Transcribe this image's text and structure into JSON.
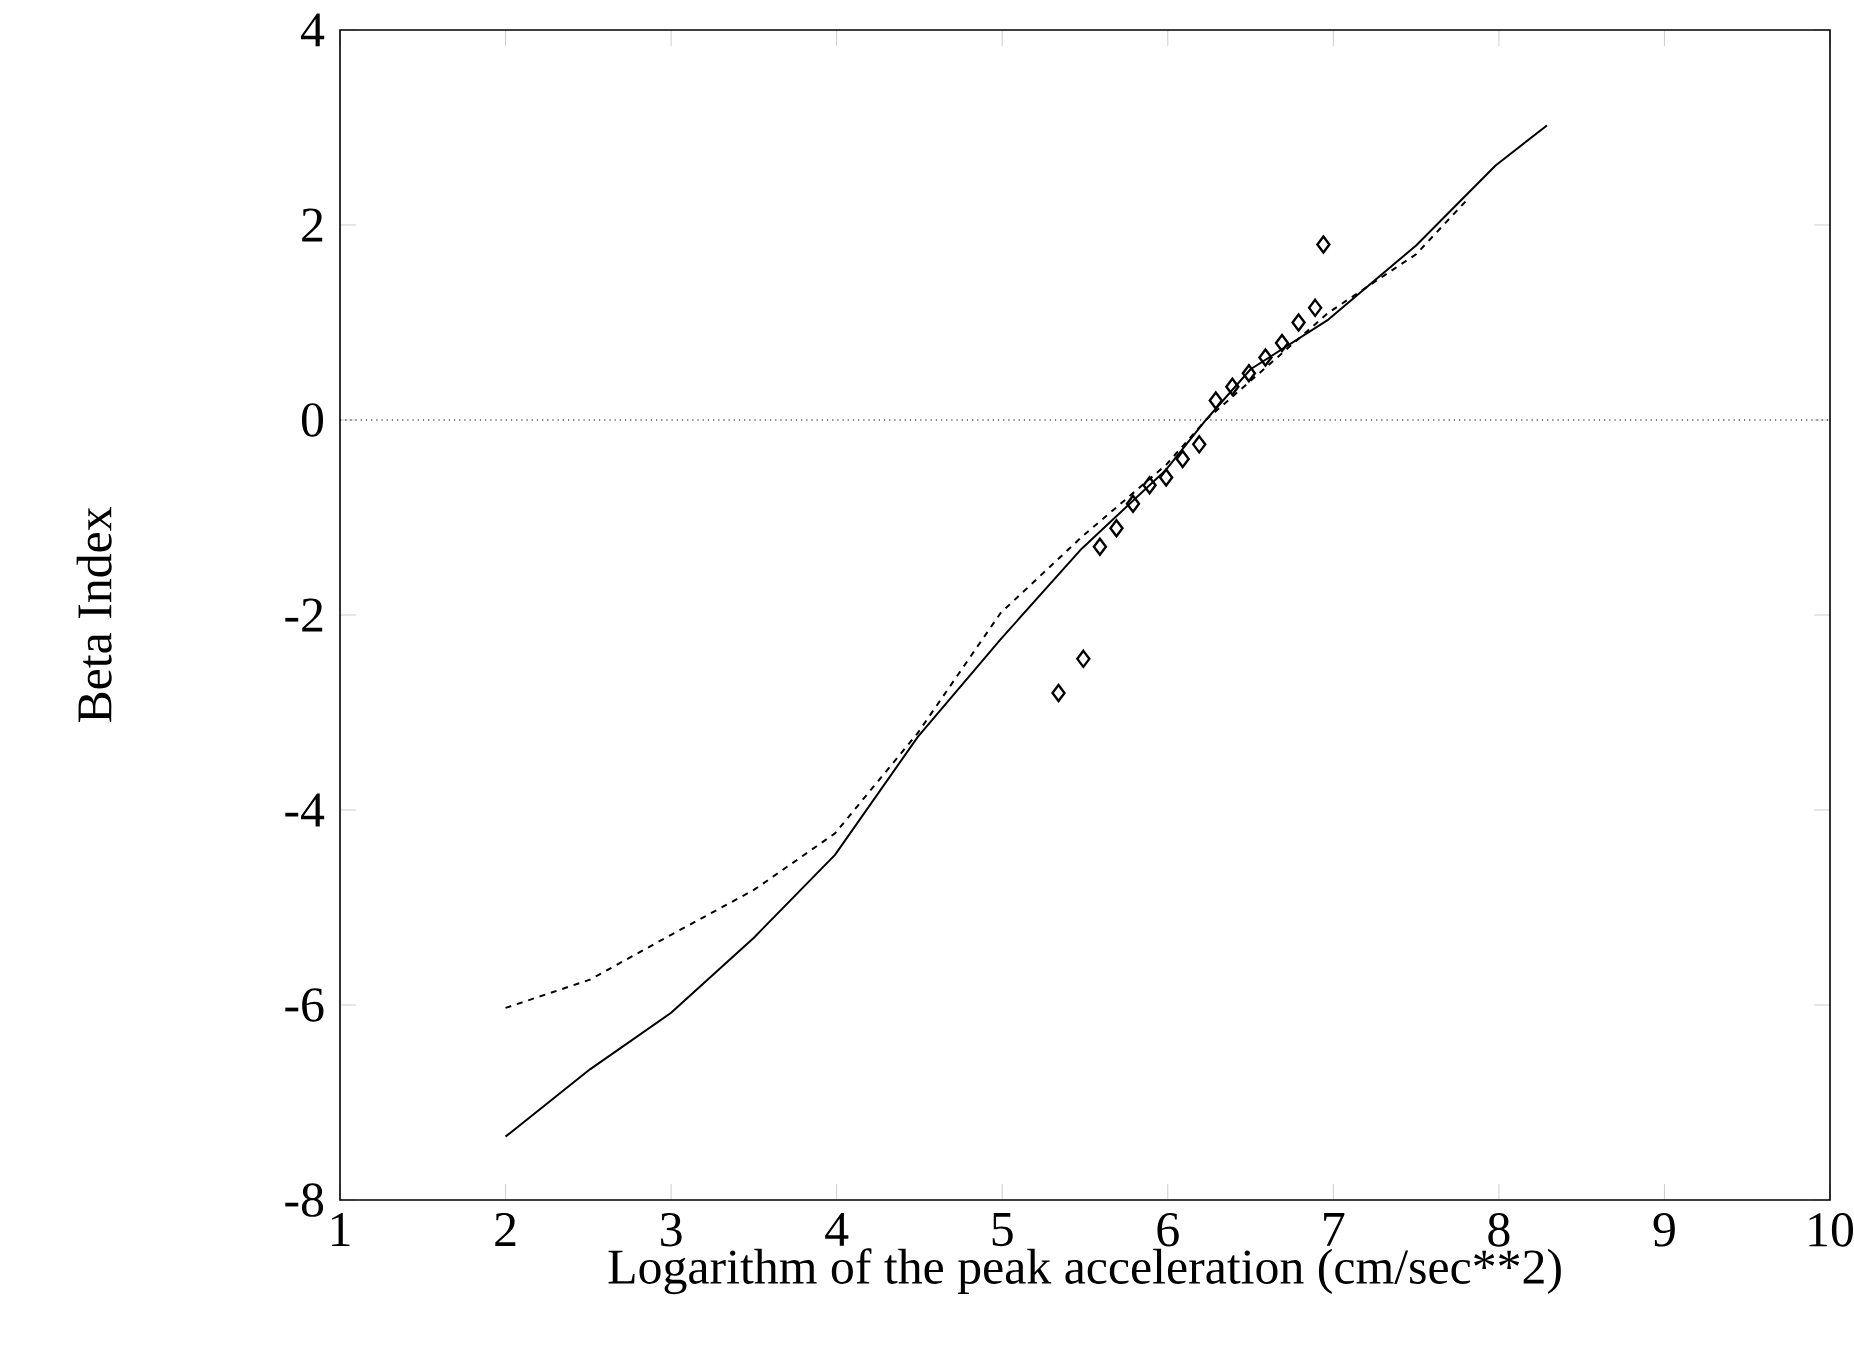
{
  "chart_data": {
    "type": "scatter",
    "xlabel": "Logarithm of the peak acceleration (cm/sec**2)",
    "ylabel": "Beta Index",
    "xlim": [
      1,
      10
    ],
    "xticks": [
      1,
      2,
      3,
      4,
      5,
      6,
      7,
      8,
      9,
      10
    ],
    "ylim": [
      -8,
      4
    ],
    "yticks": [
      -8,
      -6,
      -4,
      -2,
      0,
      2,
      4
    ],
    "ref_lines": [
      {
        "axis": "y",
        "value": 0,
        "line_style": "dotted",
        "color": "#000000"
      }
    ],
    "series": [
      {
        "type": "line",
        "color": "#000000",
        "line_style": "solid",
        "marker": "none",
        "x": [
          2,
          2.51,
          3.0,
          3.5,
          3.99,
          4.49,
          4.99,
          5.48,
          5.99,
          6.23,
          6.5,
          6.97,
          7.5,
          7.98,
          8.29
        ],
        "values": [
          -7.35,
          -6.66,
          -6.08,
          -5.31,
          -4.46,
          -3.25,
          -2.25,
          -1.32,
          -0.51,
          0,
          0.52,
          1.03,
          1.79,
          2.61,
          3.02
        ]
      },
      {
        "type": "line",
        "color": "#000000",
        "line_style": "dashed",
        "marker": "none",
        "x": [
          2,
          2.51,
          3.0,
          3.5,
          3.99,
          4.49,
          4.99,
          5.48,
          5.99,
          6.23,
          6.97,
          7.5,
          7.82
        ],
        "values": [
          -6.03,
          -5.74,
          -5.28,
          -4.82,
          -4.24,
          -3.21,
          -1.98,
          -1.2,
          -0.46,
          0,
          1.1,
          1.7,
          2.28
        ]
      },
      {
        "type": "scatter",
        "color": "#000000",
        "marker": "diamond",
        "x": [
          5.34,
          5.49,
          5.59,
          5.69,
          5.79,
          5.89,
          5.99,
          6.09,
          6.19,
          6.29,
          6.39,
          6.49,
          6.59,
          6.69,
          6.79,
          6.89,
          6.94
        ],
        "values": [
          -2.8,
          -2.45,
          -1.3,
          -1.11,
          -0.86,
          -0.67,
          -0.59,
          -0.4,
          -0.25,
          0.2,
          0.34,
          0.48,
          0.64,
          0.79,
          1.0,
          1.15,
          1.8
        ]
      }
    ]
  }
}
